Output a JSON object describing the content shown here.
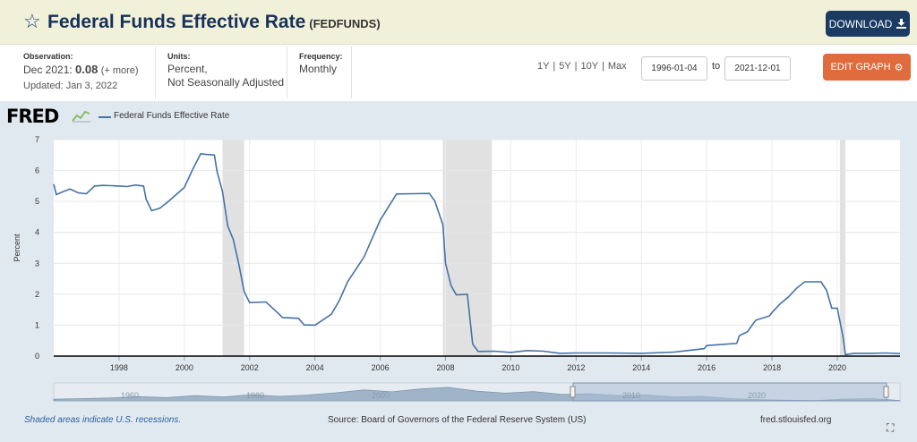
{
  "header": {
    "title": "Federal Funds Effective Rate",
    "series_id": "(FEDFUNDS)",
    "download_label": "DOWNLOAD"
  },
  "meta": {
    "observation_label": "Observation:",
    "observation_date": "Dec 2021:",
    "observation_value": "0.08",
    "observation_more": "(+ more)",
    "updated": "Updated: Jan 3, 2022",
    "units_label": "Units:",
    "units_line1": "Percent,",
    "units_line2": "Not Seasonally Adjusted",
    "frequency_label": "Frequency:",
    "frequency_value": "Monthly"
  },
  "controls": {
    "range_1y": "1Y",
    "range_5y": "5Y",
    "range_10y": "10Y",
    "range_max": "Max",
    "separator": "|",
    "start_date": "1996-01-04",
    "to_label": "to",
    "end_date": "2021-12-01",
    "edit_graph_label": "EDIT GRAPH"
  },
  "graph": {
    "logo": "FRED",
    "footer_note": "Shaded areas indicate U.S. recessions.",
    "source": "Source: Board of Governors of the Federal Reserve System (US)",
    "site": "fred.stlouisfed.org",
    "navigator_labels": [
      "1960",
      "1980",
      "2000",
      "2010",
      "2020"
    ]
  },
  "colors": {
    "line": "#4572a7",
    "recession": "#e1e1e1",
    "header_bg": "#f1f1da",
    "download": "#1b3b63",
    "edit": "#e06b3c"
  },
  "chart_data": {
    "type": "line",
    "title": "",
    "xlabel": "",
    "ylabel": "Percent",
    "xlim": [
      1996.0,
      2021.92
    ],
    "ylim": [
      0,
      7
    ],
    "yticks": [
      0,
      1,
      2,
      3,
      4,
      5,
      6,
      7
    ],
    "xticks": [
      1998,
      2000,
      2002,
      2004,
      2006,
      2008,
      2010,
      2012,
      2014,
      2016,
      2018,
      2020
    ],
    "grid": true,
    "legend": "top-left",
    "recessions": [
      [
        2001.17,
        2001.83
      ],
      [
        2007.92,
        2009.42
      ],
      [
        2020.08,
        2020.25
      ]
    ],
    "series": [
      {
        "name": "Federal Funds Effective Rate",
        "x": [
          1996.0,
          1996.08,
          1996.25,
          1996.5,
          1996.75,
          1997.0,
          1997.25,
          1997.5,
          1997.75,
          1998.0,
          1998.25,
          1998.5,
          1998.75,
          1998.83,
          1999.0,
          1999.25,
          1999.5,
          1999.75,
          2000.0,
          2000.25,
          2000.5,
          2000.67,
          2000.92,
          2001.0,
          2001.17,
          2001.33,
          2001.5,
          2001.67,
          2001.83,
          2002.0,
          2002.5,
          2002.92,
          2003.0,
          2003.5,
          2003.67,
          2004.0,
          2004.5,
          2004.75,
          2005.0,
          2005.5,
          2006.0,
          2006.5,
          2007.0,
          2007.5,
          2007.67,
          2007.92,
          2008.0,
          2008.17,
          2008.33,
          2008.67,
          2008.83,
          2009.0,
          2009.5,
          2010.0,
          2010.5,
          2011.0,
          2011.5,
          2012.0,
          2013.0,
          2014.0,
          2015.0,
          2015.92,
          2016.0,
          2016.92,
          2017.0,
          2017.25,
          2017.5,
          2017.92,
          2018.0,
          2018.25,
          2018.5,
          2018.75,
          2019.0,
          2019.5,
          2019.67,
          2019.83,
          2020.0,
          2020.17,
          2020.25,
          2020.5,
          2021.0,
          2021.5,
          2021.92
        ],
        "y": [
          5.56,
          5.22,
          5.3,
          5.4,
          5.28,
          5.25,
          5.5,
          5.52,
          5.51,
          5.5,
          5.48,
          5.53,
          5.5,
          5.07,
          4.7,
          4.78,
          4.99,
          5.22,
          5.45,
          6.02,
          6.54,
          6.52,
          6.5,
          5.98,
          5.31,
          4.21,
          3.77,
          2.97,
          2.09,
          1.73,
          1.75,
          1.34,
          1.25,
          1.22,
          1.01,
          1.0,
          1.35,
          1.8,
          2.4,
          3.2,
          4.4,
          5.24,
          5.25,
          5.26,
          5.02,
          4.24,
          3.0,
          2.28,
          1.98,
          2.0,
          0.39,
          0.15,
          0.16,
          0.12,
          0.18,
          0.16,
          0.09,
          0.1,
          0.1,
          0.09,
          0.13,
          0.24,
          0.34,
          0.41,
          0.66,
          0.79,
          1.16,
          1.3,
          1.41,
          1.69,
          1.91,
          2.19,
          2.4,
          2.4,
          2.13,
          1.55,
          1.55,
          0.65,
          0.05,
          0.09,
          0.09,
          0.1,
          0.08
        ]
      }
    ]
  }
}
